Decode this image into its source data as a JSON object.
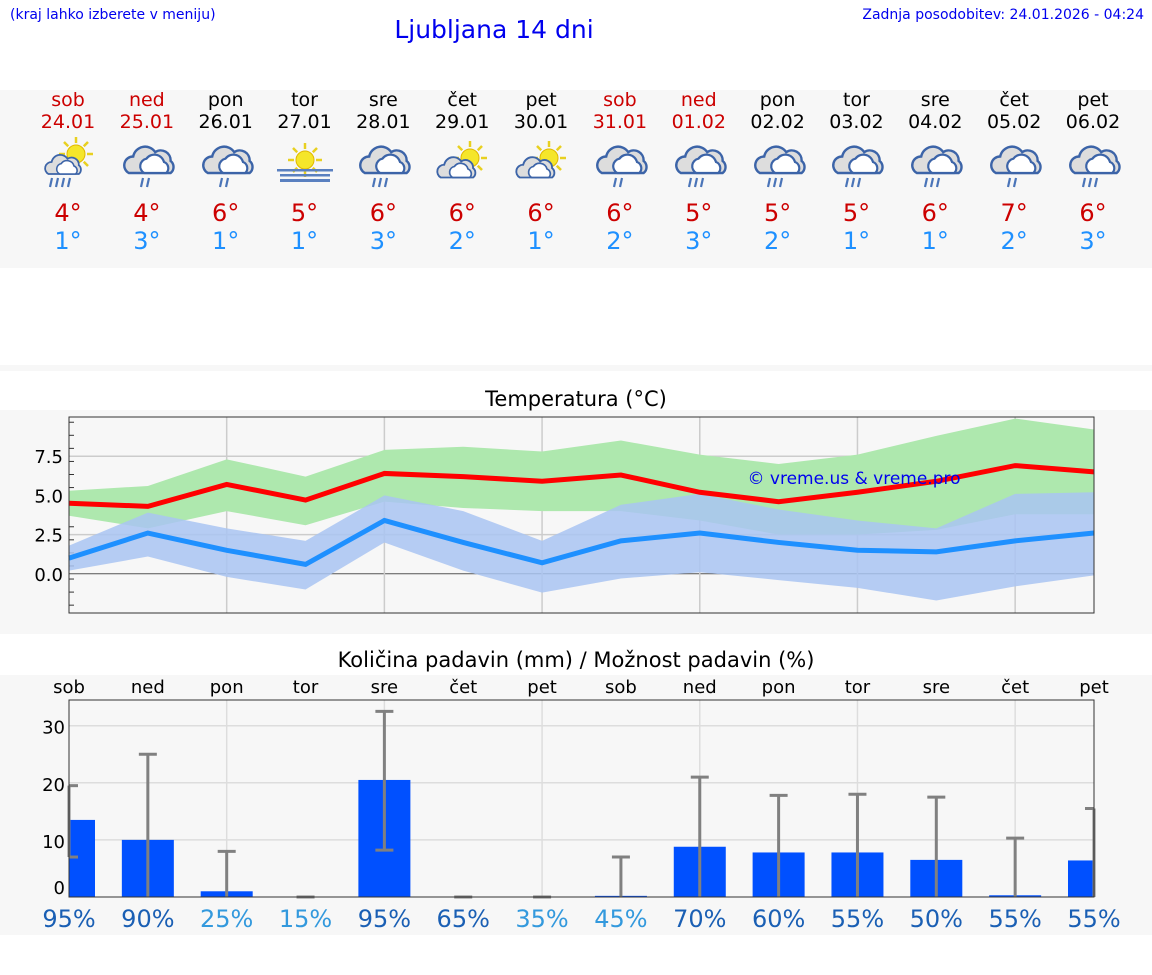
{
  "header": {
    "hint": "(kraj lahko izberete v meniju)",
    "title": "Ljubljana 14 dni",
    "updated": "Zadnja posodobitev: 24.01.2026 - 04:24"
  },
  "days": [
    {
      "name": "sob",
      "date": "24.01",
      "weekend": true,
      "icon": "sun-cloud-rain",
      "max": "4°",
      "min": "1°"
    },
    {
      "name": "ned",
      "date": "25.01",
      "weekend": true,
      "icon": "cloud-rain",
      "max": "4°",
      "min": "3°"
    },
    {
      "name": "pon",
      "date": "26.01",
      "weekend": false,
      "icon": "cloud-rain",
      "max": "6°",
      "min": "1°"
    },
    {
      "name": "tor",
      "date": "27.01",
      "weekend": false,
      "icon": "sun-fog",
      "max": "5°",
      "min": "1°"
    },
    {
      "name": "sre",
      "date": "28.01",
      "weekend": false,
      "icon": "cloud-rain-heavy",
      "max": "6°",
      "min": "3°"
    },
    {
      "name": "čet",
      "date": "29.01",
      "weekend": false,
      "icon": "sun-cloud",
      "max": "6°",
      "min": "2°"
    },
    {
      "name": "pet",
      "date": "30.01",
      "weekend": false,
      "icon": "sun-cloud",
      "max": "6°",
      "min": "1°"
    },
    {
      "name": "sob",
      "date": "31.01",
      "weekend": true,
      "icon": "cloud-rain",
      "max": "6°",
      "min": "2°"
    },
    {
      "name": "ned",
      "date": "01.02",
      "weekend": true,
      "icon": "cloud-rain-heavy",
      "max": "5°",
      "min": "3°"
    },
    {
      "name": "pon",
      "date": "02.02",
      "weekend": false,
      "icon": "cloud-rain-heavy",
      "max": "5°",
      "min": "2°"
    },
    {
      "name": "tor",
      "date": "03.02",
      "weekend": false,
      "icon": "cloud-rain-heavy",
      "max": "5°",
      "min": "1°"
    },
    {
      "name": "sre",
      "date": "04.02",
      "weekend": false,
      "icon": "cloud-rain-heavy",
      "max": "6°",
      "min": "1°"
    },
    {
      "name": "čet",
      "date": "05.02",
      "weekend": false,
      "icon": "cloud-rain",
      "max": "7°",
      "min": "2°"
    },
    {
      "name": "pet",
      "date": "06.02",
      "weekend": false,
      "icon": "cloud-rain-heavy",
      "max": "6°",
      "min": "3°"
    }
  ],
  "colors": {
    "weekend": "#cc0000",
    "max": "#ff0000",
    "min": "#1e90ff",
    "max_band": "#aee8ae",
    "min_band": "#a9c4f2",
    "bar": "#0050ff",
    "errbar": "#808080",
    "prob_high": "#1a5fb4",
    "prob_low": "#3399dd"
  },
  "chart_data": [
    {
      "type": "line",
      "title": "Temperatura (°C)",
      "ylim": [
        -2.5,
        10
      ],
      "yticks": [
        "0.0",
        "2.5",
        "5.0",
        "7.5"
      ],
      "grid": true,
      "watermark": "© vreme.us & vreme.pro",
      "series": [
        {
          "values": [
            4.5,
            4.3,
            5.7,
            4.7,
            6.4,
            6.2,
            5.9,
            6.3,
            5.2,
            4.6,
            5.2,
            5.9,
            6.9,
            6.5
          ],
          "band_high": [
            5.3,
            5.6,
            7.3,
            6.2,
            7.9,
            8.1,
            7.8,
            8.5,
            7.6,
            7.0,
            7.6,
            8.8,
            9.9,
            9.2
          ],
          "band_low": [
            3.7,
            2.9,
            4.0,
            3.1,
            4.6,
            4.2,
            4.0,
            4.0,
            3.4,
            2.5,
            2.5,
            2.8,
            3.8,
            3.8
          ]
        },
        {
          "values": [
            1.0,
            2.6,
            1.5,
            0.6,
            3.4,
            2.0,
            0.7,
            2.1,
            2.6,
            2.0,
            1.5,
            1.4,
            2.1,
            2.6
          ],
          "band_high": [
            1.8,
            3.9,
            2.9,
            2.1,
            5.0,
            4.0,
            2.1,
            4.4,
            5.1,
            4.1,
            3.4,
            2.9,
            5.1,
            5.2
          ],
          "band_low": [
            0.2,
            1.1,
            -0.2,
            -1.0,
            2.0,
            0.2,
            -1.2,
            -0.3,
            0.1,
            -0.4,
            -0.9,
            -1.7,
            -0.8,
            -0.1
          ]
        }
      ]
    },
    {
      "type": "bar",
      "title": "Količina padavin (mm) / Možnost padavin (%)",
      "ylim": [
        0,
        34.5
      ],
      "yticks": [
        "0",
        "10",
        "20",
        "30"
      ],
      "grid": true,
      "categories": [
        "sob",
        "ned",
        "pon",
        "tor",
        "sre",
        "čet",
        "pet",
        "sob",
        "ned",
        "pon",
        "tor",
        "sre",
        "čet",
        "pet"
      ],
      "values": [
        13.5,
        10,
        1,
        0,
        20.5,
        0,
        0,
        0.2,
        8.8,
        7.8,
        7.8,
        6.5,
        0.3,
        6.4
      ],
      "err_high": [
        19.5,
        25,
        8,
        0,
        32.5,
        0,
        0,
        7,
        21,
        17.8,
        18,
        17.5,
        10.3,
        15.5
      ],
      "err_low": [
        7,
        0,
        0,
        0,
        8.2,
        0,
        0,
        0,
        0,
        0,
        0,
        0,
        0,
        0
      ],
      "probability": [
        "95%",
        "90%",
        "25%",
        "15%",
        "95%",
        "65%",
        "35%",
        "45%",
        "70%",
        "60%",
        "55%",
        "50%",
        "55%",
        "55%"
      ],
      "probability_values": [
        95,
        90,
        25,
        15,
        95,
        65,
        35,
        45,
        70,
        60,
        55,
        50,
        55,
        55
      ]
    }
  ]
}
